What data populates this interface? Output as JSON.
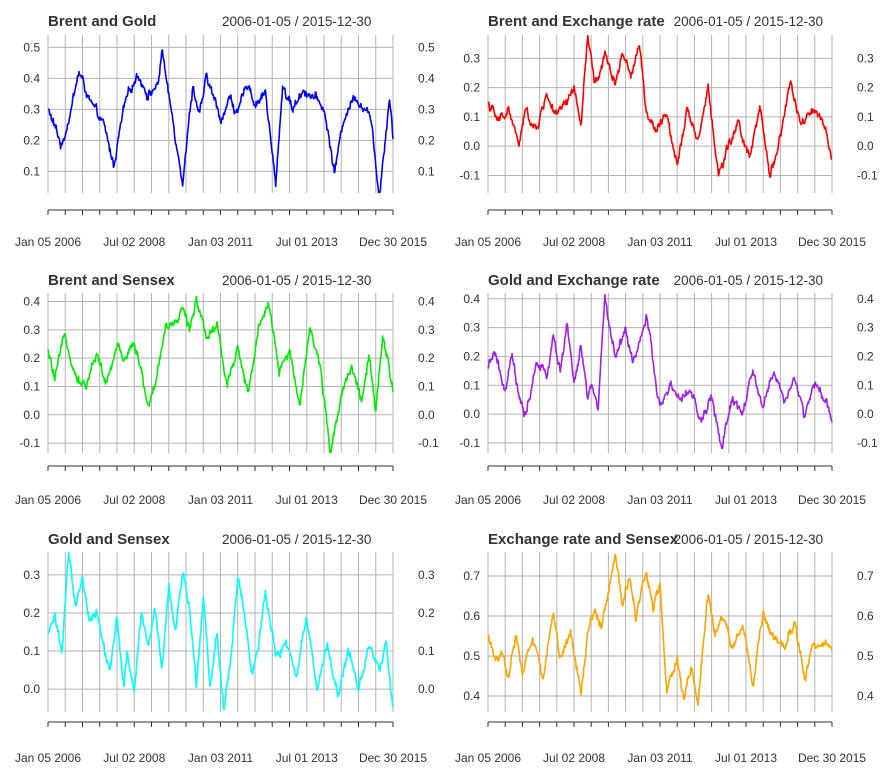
{
  "chart_data": [
    {
      "type": "line",
      "title": "Brent and Gold",
      "date_range": "2006-01-05 / 2015-12-30",
      "color": "#0000FF",
      "x_labels": [
        "Jan 05 2006",
        "Jul 02 2008",
        "Jan 03 2011",
        "Jul 01 2013",
        "Dec 30 2015"
      ],
      "y_ticks": [
        "0.1",
        "0.2",
        "0.3",
        "0.4",
        "0.5"
      ],
      "ylim": [
        0.03,
        0.54
      ],
      "series": [
        {
          "name": "Brent and Gold",
          "x": [
            0,
            0.04,
            0.09,
            0.13,
            0.16,
            0.19,
            0.22,
            0.26,
            0.29,
            0.32,
            0.33,
            0.35,
            0.39,
            0.42,
            0.44,
            0.46,
            0.5,
            0.53,
            0.55,
            0.58,
            0.6,
            0.63,
            0.66,
            0.68,
            0.71,
            0.74,
            0.77,
            0.8,
            0.83,
            0.86,
            0.89,
            0.92,
            0.94,
            0.96,
            0.99,
            1.0
          ],
          "y": [
            0.3,
            0.18,
            0.42,
            0.3,
            0.25,
            0.12,
            0.3,
            0.42,
            0.35,
            0.38,
            0.5,
            0.34,
            0.08,
            0.38,
            0.28,
            0.4,
            0.27,
            0.34,
            0.28,
            0.39,
            0.32,
            0.36,
            0.05,
            0.38,
            0.3,
            0.37,
            0.34,
            0.3,
            0.1,
            0.28,
            0.35,
            0.3,
            0.25,
            0.02,
            0.35,
            0.21
          ]
        }
      ]
    },
    {
      "type": "line",
      "title": "Brent and Exchange rate",
      "date_range": "2006-01-05 / 2015-12-30",
      "color": "#FF0000",
      "x_labels": [
        "Jan 05 2006",
        "Jul 02 2008",
        "Jan 03 2011",
        "Jul 01 2013",
        "Dec 30 2015"
      ],
      "y_ticks": [
        "-0.1",
        "0.0",
        "0.1",
        "0.2",
        "0.3"
      ],
      "ylim": [
        -0.16,
        0.38
      ],
      "series": [
        {
          "name": "Brent and Exchange rate",
          "x": [
            0,
            0.03,
            0.06,
            0.09,
            0.11,
            0.14,
            0.17,
            0.2,
            0.23,
            0.25,
            0.27,
            0.29,
            0.31,
            0.34,
            0.37,
            0.39,
            0.42,
            0.44,
            0.46,
            0.49,
            0.52,
            0.55,
            0.58,
            0.61,
            0.64,
            0.67,
            0.7,
            0.73,
            0.76,
            0.79,
            0.82,
            0.85,
            0.88,
            0.91,
            0.94,
            0.97,
            1.0
          ],
          "y": [
            0.15,
            0.08,
            0.13,
            0.0,
            0.12,
            0.05,
            0.18,
            0.1,
            0.14,
            0.2,
            0.06,
            0.38,
            0.2,
            0.3,
            0.22,
            0.32,
            0.25,
            0.36,
            0.12,
            0.05,
            0.1,
            -0.05,
            0.14,
            0.02,
            0.2,
            -0.1,
            0.0,
            0.08,
            -0.05,
            0.12,
            -0.1,
            0.04,
            0.22,
            0.06,
            0.12,
            0.08,
            -0.05
          ]
        }
      ]
    },
    {
      "type": "line",
      "title": "Brent and Sensex",
      "date_range": "2006-01-05 / 2015-12-30",
      "color": "#00EE00",
      "x_labels": [
        "Jan 05 2006",
        "Jul 02 2008",
        "Jan 03 2011",
        "Jul 01 2013",
        "Dec 30 2015"
      ],
      "y_ticks": [
        "-0.1",
        "0.0",
        "0.1",
        "0.2",
        "0.3",
        "0.4"
      ],
      "ylim": [
        -0.135,
        0.43
      ],
      "series": [
        {
          "name": "Brent and Sensex",
          "x": [
            0,
            0.02,
            0.05,
            0.08,
            0.11,
            0.14,
            0.17,
            0.2,
            0.22,
            0.25,
            0.27,
            0.29,
            0.31,
            0.34,
            0.37,
            0.39,
            0.41,
            0.43,
            0.46,
            0.49,
            0.52,
            0.55,
            0.58,
            0.61,
            0.64,
            0.67,
            0.7,
            0.73,
            0.76,
            0.79,
            0.82,
            0.85,
            0.88,
            0.91,
            0.93,
            0.95,
            0.97,
            1.0
          ],
          "y": [
            0.22,
            0.12,
            0.28,
            0.15,
            0.1,
            0.22,
            0.1,
            0.24,
            0.2,
            0.27,
            0.15,
            0.03,
            0.1,
            0.32,
            0.3,
            0.38,
            0.3,
            0.42,
            0.28,
            0.32,
            0.1,
            0.25,
            0.08,
            0.3,
            0.38,
            0.15,
            0.22,
            0.05,
            0.32,
            0.15,
            -0.13,
            0.08,
            0.18,
            0.05,
            0.2,
            0.0,
            0.27,
            0.1
          ]
        }
      ]
    },
    {
      "type": "line",
      "title": "Gold and Exchange rate",
      "date_range": "2006-01-05 / 2015-12-30",
      "color": "#A020F0",
      "x_labels": [
        "Jan 05 2006",
        "Jul 02 2008",
        "Jan 03 2011",
        "Jul 01 2013",
        "Dec 30 2015"
      ],
      "y_ticks": [
        "-0.1",
        "0.0",
        "0.1",
        "0.2",
        "0.3",
        "0.4"
      ],
      "ylim": [
        -0.135,
        0.42
      ],
      "series": [
        {
          "name": "Gold and Exchange rate",
          "x": [
            0,
            0.02,
            0.05,
            0.07,
            0.09,
            0.11,
            0.14,
            0.17,
            0.19,
            0.21,
            0.23,
            0.25,
            0.27,
            0.29,
            0.3,
            0.32,
            0.34,
            0.37,
            0.4,
            0.42,
            0.44,
            0.46,
            0.48,
            0.5,
            0.53,
            0.56,
            0.59,
            0.62,
            0.65,
            0.68,
            0.71,
            0.74,
            0.77,
            0.8,
            0.83,
            0.86,
            0.89,
            0.92,
            0.95,
            0.98,
            1.0
          ],
          "y": [
            0.15,
            0.22,
            0.06,
            0.2,
            0.05,
            -0.02,
            0.18,
            0.12,
            0.28,
            0.14,
            0.32,
            0.1,
            0.22,
            0.05,
            0.1,
            0.02,
            0.4,
            0.2,
            0.3,
            0.18,
            0.25,
            0.33,
            0.18,
            0.02,
            0.1,
            0.04,
            0.08,
            -0.03,
            0.06,
            -0.12,
            0.05,
            0.0,
            0.14,
            0.02,
            0.15,
            0.05,
            0.12,
            0.0,
            0.1,
            0.04,
            -0.02
          ]
        }
      ]
    },
    {
      "type": "line",
      "title": "Gold and Sensex",
      "date_range": "2006-01-05 / 2015-12-30",
      "color": "#00FFFF",
      "x_labels": [
        "Jan 05 2006",
        "Jul 02 2008",
        "Jan 03 2011",
        "Jul 01 2013",
        "Dec 30 2015"
      ],
      "y_ticks": [
        "0.0",
        "0.1",
        "0.2",
        "0.3"
      ],
      "ylim": [
        -0.06,
        0.36
      ],
      "series": [
        {
          "name": "Gold and Sensex",
          "x": [
            0,
            0.02,
            0.04,
            0.06,
            0.08,
            0.1,
            0.12,
            0.14,
            0.16,
            0.18,
            0.2,
            0.22,
            0.23,
            0.25,
            0.27,
            0.29,
            0.31,
            0.33,
            0.35,
            0.37,
            0.39,
            0.41,
            0.43,
            0.45,
            0.47,
            0.49,
            0.51,
            0.53,
            0.55,
            0.57,
            0.59,
            0.61,
            0.63,
            0.66,
            0.69,
            0.72,
            0.75,
            0.78,
            0.81,
            0.84,
            0.87,
            0.9,
            0.93,
            0.96,
            0.98,
            1.0
          ],
          "y": [
            0.14,
            0.2,
            0.1,
            0.35,
            0.2,
            0.3,
            0.18,
            0.2,
            0.12,
            0.05,
            0.18,
            0.0,
            0.1,
            -0.02,
            0.2,
            0.12,
            0.22,
            0.06,
            0.28,
            0.15,
            0.32,
            0.22,
            0.02,
            0.25,
            0.0,
            0.15,
            -0.05,
            0.1,
            0.3,
            0.2,
            0.05,
            0.1,
            0.25,
            0.08,
            0.12,
            0.04,
            0.18,
            0.0,
            0.12,
            -0.02,
            0.1,
            0.0,
            0.12,
            0.05,
            0.12,
            -0.04
          ]
        }
      ]
    },
    {
      "type": "line",
      "title": "Exchange rate and Sensex",
      "date_range": "2006-01-05 / 2015-12-30",
      "color": "#FFA500",
      "x_labels": [
        "Jan 05 2006",
        "Jul 02 2008",
        "Jan 03 2011",
        "Jul 01 2013",
        "Dec 30 2015"
      ],
      "y_ticks": [
        "0.4",
        "0.5",
        "0.6",
        "0.7"
      ],
      "ylim": [
        0.36,
        0.76
      ],
      "series": [
        {
          "name": "Exchange rate and Sensex",
          "x": [
            0,
            0.02,
            0.04,
            0.06,
            0.08,
            0.1,
            0.13,
            0.16,
            0.19,
            0.21,
            0.24,
            0.27,
            0.29,
            0.31,
            0.33,
            0.35,
            0.37,
            0.39,
            0.41,
            0.43,
            0.46,
            0.48,
            0.5,
            0.52,
            0.55,
            0.57,
            0.59,
            0.61,
            0.64,
            0.66,
            0.68,
            0.71,
            0.74,
            0.77,
            0.8,
            0.83,
            0.86,
            0.89,
            0.92,
            0.95,
            0.98,
            1.0
          ],
          "y": [
            0.55,
            0.48,
            0.52,
            0.44,
            0.56,
            0.46,
            0.55,
            0.45,
            0.6,
            0.5,
            0.56,
            0.42,
            0.55,
            0.62,
            0.58,
            0.66,
            0.75,
            0.62,
            0.7,
            0.6,
            0.72,
            0.62,
            0.68,
            0.42,
            0.5,
            0.38,
            0.48,
            0.38,
            0.65,
            0.55,
            0.6,
            0.52,
            0.58,
            0.42,
            0.6,
            0.55,
            0.5,
            0.58,
            0.45,
            0.52,
            0.55,
            0.52
          ]
        }
      ]
    }
  ]
}
